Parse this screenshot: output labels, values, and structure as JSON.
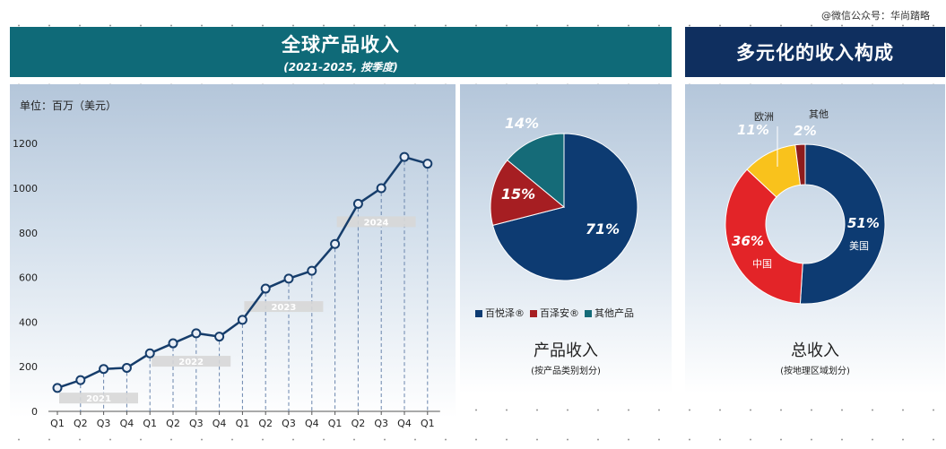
{
  "watermark": "@微信公众号：华尚踏略",
  "left_header": {
    "title": "全球产品收入",
    "subtitle": "(2021-2025, 按季度)"
  },
  "right_header": {
    "title": "多元化的收入构成"
  },
  "unit_label": "单位：百万（美元）",
  "pie_caption": {
    "title": "产品收入",
    "subtitle": "(按产品类别划分)"
  },
  "donut_caption": {
    "title": "总收入",
    "subtitle": "(按地理区域划分)"
  },
  "colors": {
    "navy": "#0d3b72",
    "red": "#a61e22",
    "teal": "#156b78",
    "brightred": "#e32428",
    "yellow": "#f9c21c",
    "darkred": "#8e1c1c",
    "line": "#163d6b"
  },
  "chart_data": [
    {
      "type": "line",
      "title": "",
      "ylabel": "单位：百万（美元）",
      "ylim": [
        0,
        1300
      ],
      "yticks": [
        0,
        200,
        400,
        600,
        800,
        1000,
        1200
      ],
      "categories": [
        "Q1",
        "Q2",
        "Q3",
        "Q4",
        "Q1",
        "Q2",
        "Q3",
        "Q4",
        "Q1",
        "Q2",
        "Q3",
        "Q4",
        "Q1",
        "Q2",
        "Q3",
        "Q4",
        "Q1"
      ],
      "series": [
        {
          "values": [
            105,
            140,
            190,
            195,
            260,
            305,
            350,
            335,
            410,
            550,
            595,
            630,
            750,
            930,
            1000,
            1140,
            1110
          ]
        }
      ],
      "year_labels": [
        {
          "label": "2021",
          "start": 0
        },
        {
          "label": "2022",
          "start": 4
        },
        {
          "label": "2023",
          "start": 8
        },
        {
          "label": "2024",
          "start": 12
        }
      ],
      "grid": false
    },
    {
      "type": "pie",
      "slices": [
        {
          "name": "百悦泽®",
          "value": 71,
          "label": "71%",
          "color": "#0d3b72"
        },
        {
          "name": "百泽安®",
          "value": 15,
          "label": "15%",
          "color": "#a61e22"
        },
        {
          "name": "其他产品",
          "value": 14,
          "label": "14%",
          "color": "#156b78"
        }
      ],
      "legend": "bottom"
    },
    {
      "type": "pie",
      "donut": true,
      "slices": [
        {
          "name": "美国",
          "value": 51,
          "label": "51%",
          "color": "#0d3b72"
        },
        {
          "name": "中国",
          "value": 36,
          "label": "36%",
          "color": "#e32428"
        },
        {
          "name": "欧洲",
          "value": 11,
          "label": "11%",
          "color": "#f9c21c"
        },
        {
          "name": "其他",
          "value": 2,
          "label": "2%",
          "color": "#8e1c1c"
        }
      ]
    }
  ]
}
